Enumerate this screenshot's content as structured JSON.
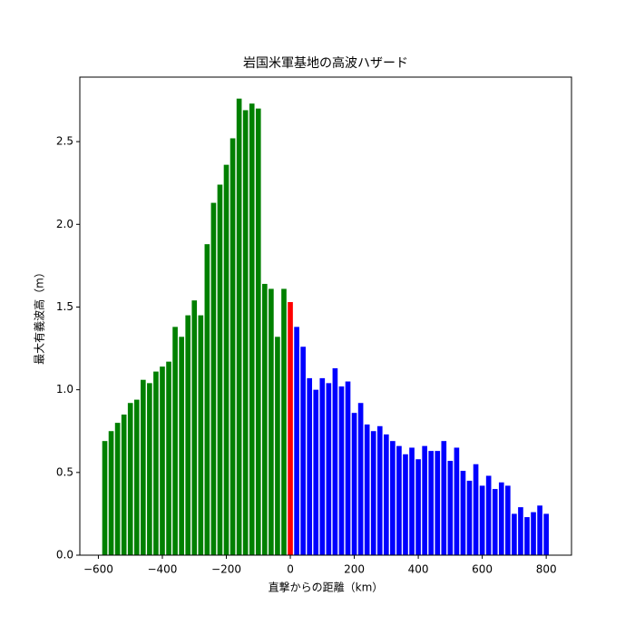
{
  "chart_data": {
    "type": "bar",
    "title": "岩国米軍基地の高波ハザード",
    "xlabel": "直撃からの距離（km）",
    "ylabel": "最大有義波高（m）",
    "series": [
      {
        "color": "green",
        "x": [
          -580,
          -560,
          -540,
          -520,
          -500,
          -480,
          -460,
          -440,
          -420,
          -400,
          -380,
          -360,
          -340,
          -320,
          -300,
          -280,
          -260,
          -240,
          -220,
          -200,
          -180,
          -160,
          -140,
          -120,
          -100,
          -80,
          -60,
          -40,
          -20
        ],
        "values": [
          0.69,
          0.75,
          0.8,
          0.85,
          0.92,
          0.94,
          1.06,
          1.04,
          1.11,
          1.14,
          1.17,
          1.38,
          1.32,
          1.45,
          1.54,
          1.45,
          1.88,
          2.13,
          2.24,
          2.36,
          2.52,
          2.76,
          2.69,
          2.73,
          2.7,
          1.64,
          1.61,
          1.32,
          1.61
        ]
      },
      {
        "color": "red",
        "x": [
          0
        ],
        "values": [
          1.53
        ]
      },
      {
        "color": "blue",
        "x": [
          20,
          40,
          60,
          80,
          100,
          120,
          140,
          160,
          180,
          200,
          220,
          240,
          260,
          280,
          300,
          320,
          340,
          360,
          380,
          400,
          420,
          440,
          460,
          480,
          500,
          520,
          540,
          560,
          580,
          600,
          620,
          640,
          660,
          680,
          700,
          720,
          740,
          760,
          780,
          800
        ],
        "values": [
          1.38,
          1.26,
          1.07,
          1.0,
          1.07,
          1.04,
          1.13,
          1.02,
          1.05,
          0.86,
          0.92,
          0.79,
          0.75,
          0.78,
          0.73,
          0.69,
          0.66,
          0.61,
          0.65,
          0.58,
          0.66,
          0.63,
          0.63,
          0.69,
          0.57,
          0.65,
          0.51,
          0.45,
          0.55,
          0.42,
          0.48,
          0.4,
          0.44,
          0.42,
          0.25,
          0.29,
          0.23,
          0.26,
          0.3,
          0.25
        ]
      }
    ],
    "xlim": [
      -658,
      879
    ],
    "xticks": [
      {
        "value": -600,
        "label": "−600"
      },
      {
        "value": -400,
        "label": "−400"
      },
      {
        "value": -200,
        "label": "−200"
      },
      0,
      200,
      400,
      600,
      800
    ],
    "ylim": [
      0,
      2.89
    ],
    "yticks": [
      {
        "value": 0,
        "label": "0.0"
      },
      0.5,
      {
        "value": 1,
        "label": "1.0"
      },
      1.5,
      {
        "value": 2,
        "label": "2.0"
      },
      2.5
    ],
    "grid": false
  }
}
